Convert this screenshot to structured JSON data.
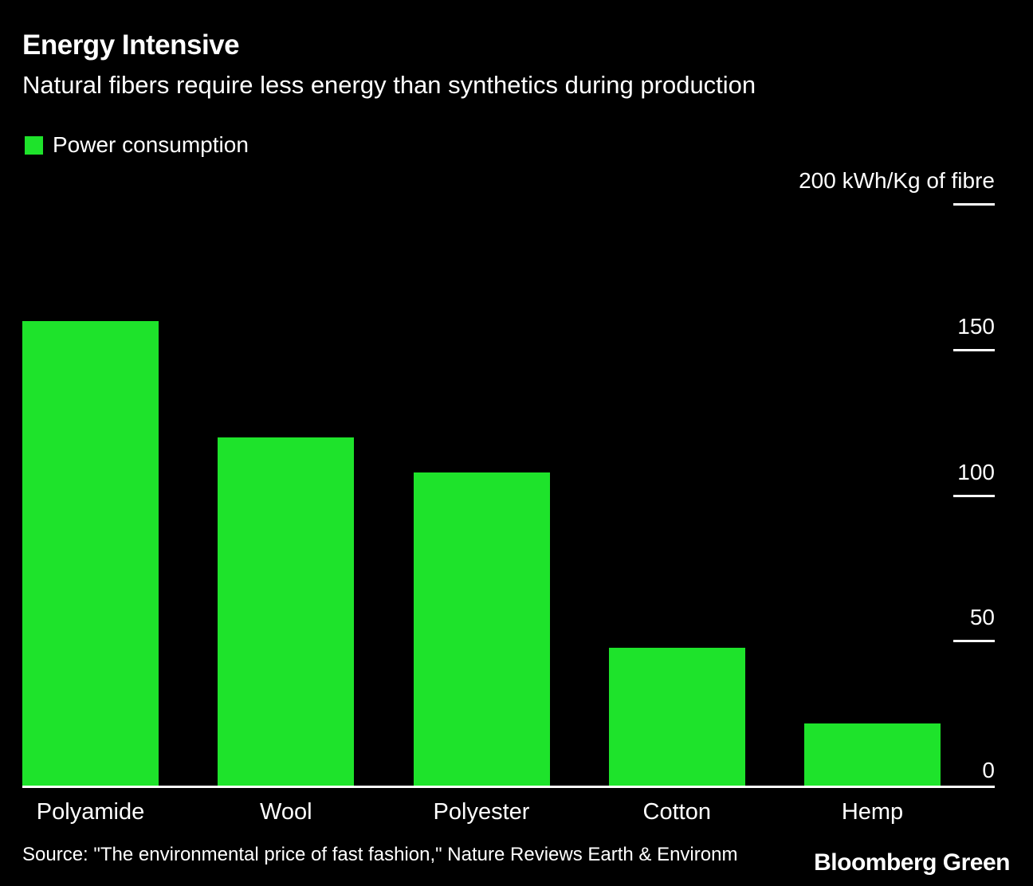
{
  "header": {
    "title": "Energy Intensive",
    "subtitle": "Natural fibers require less energy than synthetics during production"
  },
  "legend": {
    "label": "Power consumption",
    "color": "#1ee32b"
  },
  "footer": {
    "source": "Source: \"The environmental price of fast fashion,\" Nature Reviews Earth & Environm",
    "brand": "Bloomberg Green"
  },
  "chart_data": {
    "type": "bar",
    "title": "Energy Intensive",
    "subtitle": "Natural fibers require less energy than synthetics during production",
    "series_name": "Power consumption",
    "unit": "kWh/Kg of fibre",
    "categories": [
      "Polyamide",
      "Wool",
      "Polyester",
      "Cotton",
      "Hemp"
    ],
    "values": [
      160,
      120,
      108,
      48,
      22
    ],
    "bar_color": "#1ee32b",
    "background_color": "#000000",
    "text_color": "#ffffff",
    "ylim": [
      0,
      200
    ],
    "yticks": [
      {
        "value": 200,
        "label": "200 kWh/Kg of fibre"
      },
      {
        "value": 150,
        "label": "150"
      },
      {
        "value": 100,
        "label": "100"
      },
      {
        "value": 50,
        "label": "50"
      },
      {
        "value": 0,
        "label": "0"
      }
    ],
    "grid": false,
    "legend_position": "top-left",
    "axis_side": "right"
  }
}
